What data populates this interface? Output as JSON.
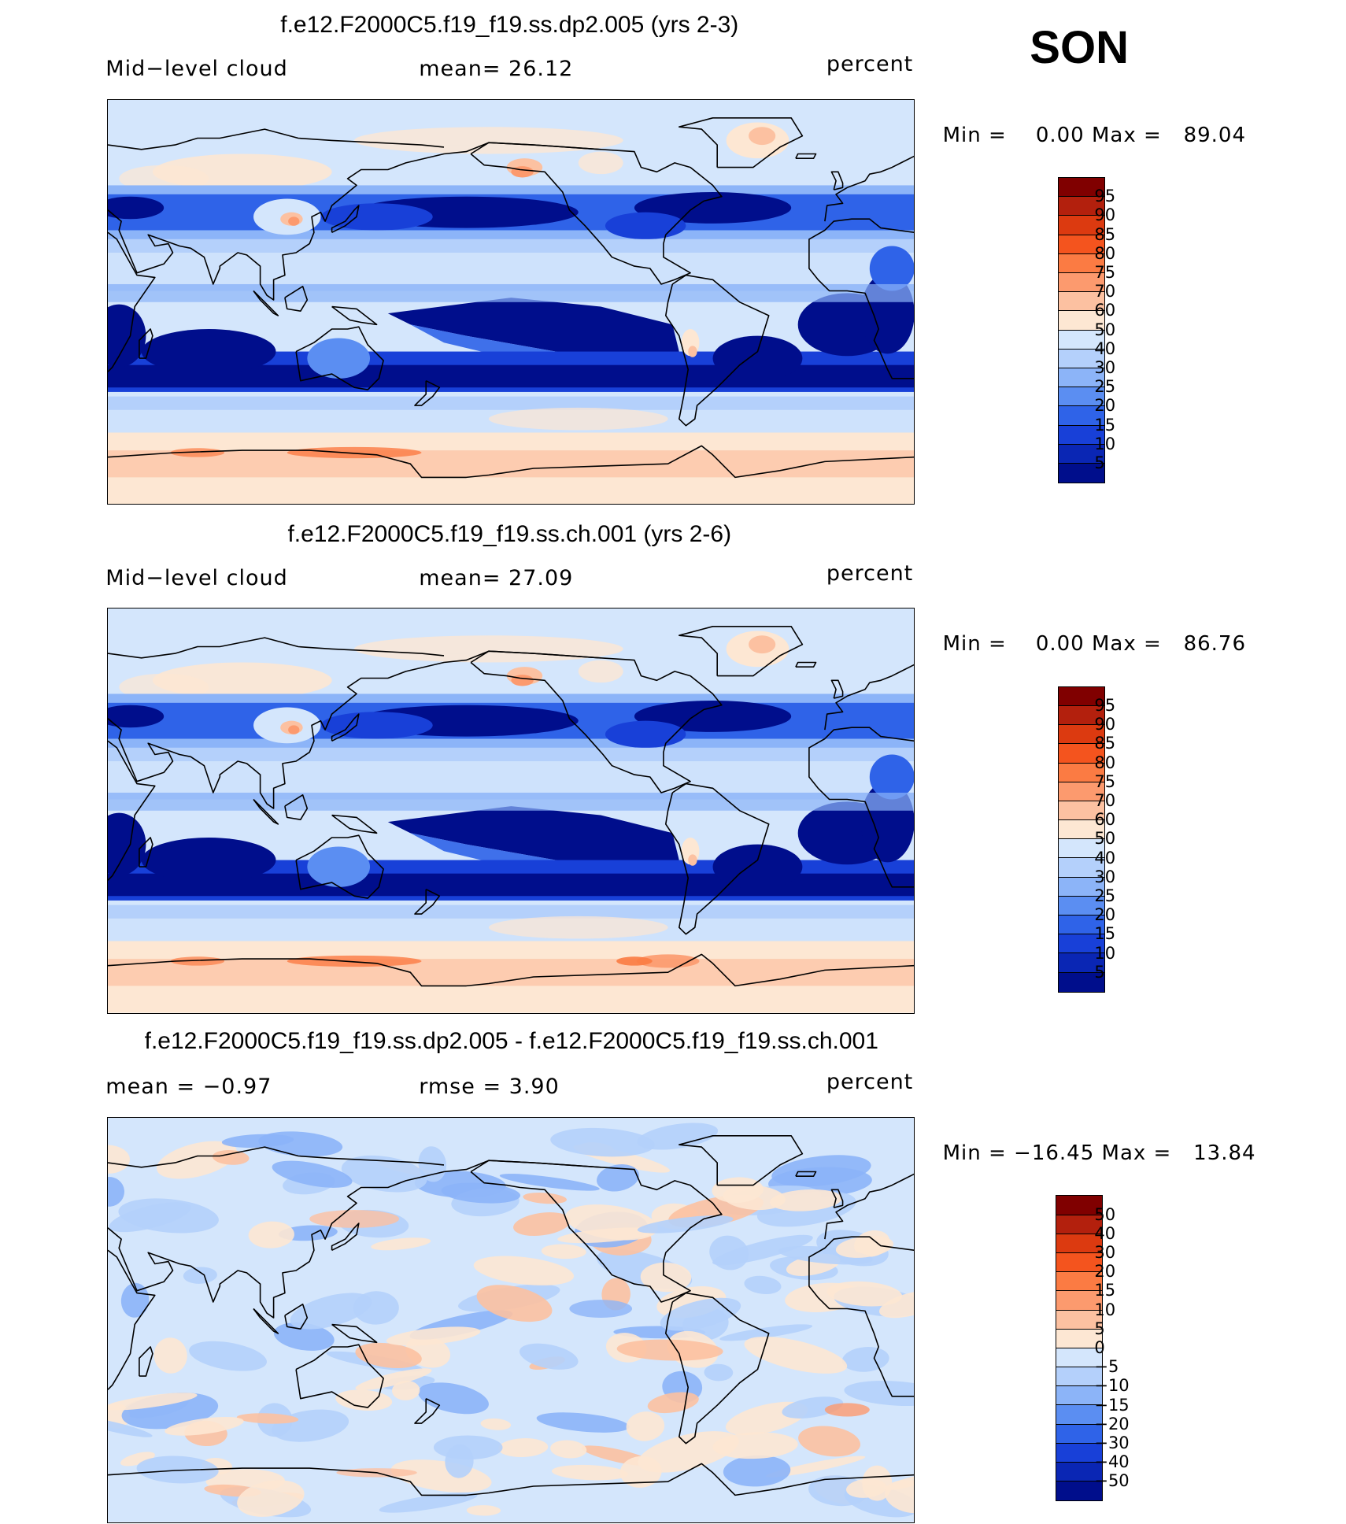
{
  "season": "SON",
  "panels": [
    {
      "title": "f.e12.F2000C5.f19_f19.ss.dp2.005 (yrs 2-3)",
      "left_text": "Mid−level cloud",
      "stat_text": "mean=   26.12",
      "right_text": "percent",
      "minmax_text": "Min =    0.00 Max =   89.04",
      "colorbar": {
        "labels": [
          "95",
          "90",
          "85",
          "80",
          "75",
          "70",
          "60",
          "50",
          "40",
          "30",
          "25",
          "20",
          "15",
          "10",
          "5"
        ],
        "colors": [
          "#800000",
          "#b3200d",
          "#dc3a10",
          "#f4541e",
          "#fb7b43",
          "#fc9a6e",
          "#fcc1a1",
          "#fde7d3",
          "#d4e6fc",
          "#b4d0fb",
          "#8cb4f8",
          "#5b8ef2",
          "#2f63e8",
          "#1840d8",
          "#0a26b4",
          "#000e8c"
        ]
      },
      "field": "mean"
    },
    {
      "title": "f.e12.F2000C5.f19_f19.ss.ch.001 (yrs 2-6)",
      "left_text": "Mid−level cloud",
      "stat_text": "mean=   27.09",
      "right_text": "percent",
      "minmax_text": "Min =    0.00 Max =   86.76",
      "colorbar": {
        "labels": [
          "95",
          "90",
          "85",
          "80",
          "75",
          "70",
          "60",
          "50",
          "40",
          "30",
          "25",
          "20",
          "15",
          "10",
          "5"
        ],
        "colors": [
          "#800000",
          "#b3200d",
          "#dc3a10",
          "#f4541e",
          "#fb7b43",
          "#fc9a6e",
          "#fcc1a1",
          "#fde7d3",
          "#d4e6fc",
          "#b4d0fb",
          "#8cb4f8",
          "#5b8ef2",
          "#2f63e8",
          "#1840d8",
          "#0a26b4",
          "#000e8c"
        ]
      },
      "field": "mean"
    },
    {
      "title": "f.e12.F2000C5.f19_f19.ss.dp2.005 - f.e12.F2000C5.f19_f19.ss.ch.001",
      "left_text": "mean =   −0.97",
      "stat_text": "rmse =     3.90",
      "right_text": "percent",
      "minmax_text": "Min = −16.45 Max =   13.84",
      "colorbar": {
        "labels": [
          "50",
          "40",
          "30",
          "20",
          "15",
          "10",
          "5",
          "0",
          "−5",
          "−10",
          "−15",
          "−20",
          "−30",
          "−40",
          "−50"
        ],
        "colors": [
          "#800000",
          "#b3200d",
          "#dc3a10",
          "#f4541e",
          "#fb7b43",
          "#fc9a6e",
          "#fcc1a1",
          "#fde7d3",
          "#d4e6fc",
          "#b4d0fb",
          "#8cb4f8",
          "#5b8ef2",
          "#2f63e8",
          "#1840d8",
          "#0a26b4",
          "#000e8c"
        ]
      },
      "field": "diff"
    }
  ]
}
